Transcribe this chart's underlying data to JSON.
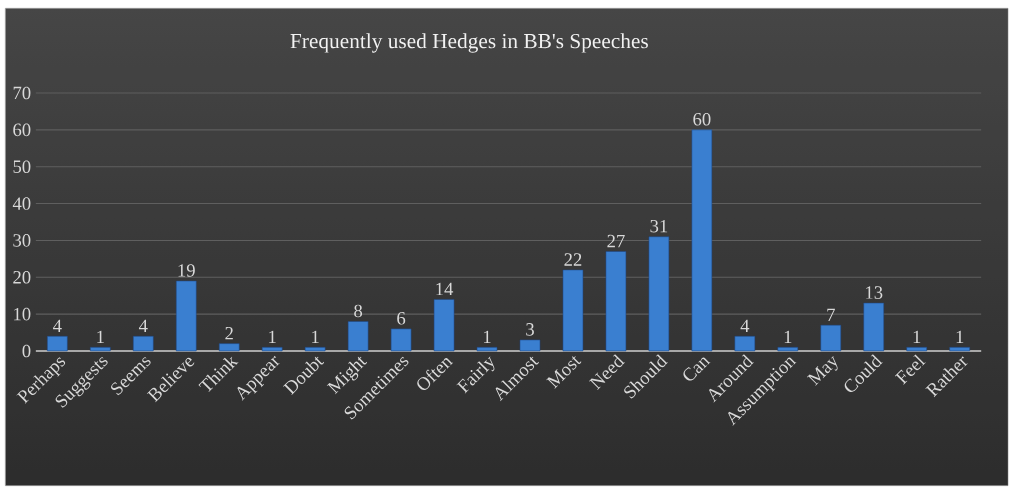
{
  "chart_data": {
    "type": "bar",
    "title": "Frequently used Hedges in BB's Speeches",
    "categories": [
      "Perhaps",
      "Suggests",
      "Seems",
      "Believe",
      "Think",
      "Appear",
      "Doubt",
      "Might",
      "Sometimes",
      "Often",
      "Fairly",
      "Almost",
      "Most",
      "Need",
      "Should",
      "Can",
      "Around",
      "Assumption",
      "May",
      "Could",
      "Feel",
      "Rather"
    ],
    "values": [
      4,
      1,
      4,
      19,
      2,
      1,
      1,
      8,
      6,
      14,
      1,
      3,
      22,
      27,
      31,
      60,
      4,
      1,
      7,
      13,
      1,
      1
    ],
    "color": "#3a7fd0",
    "ylim": [
      0,
      70
    ],
    "yticks": [
      0,
      10,
      20,
      30,
      40,
      50,
      60,
      70
    ],
    "grid": "y",
    "data_labels": true
  }
}
